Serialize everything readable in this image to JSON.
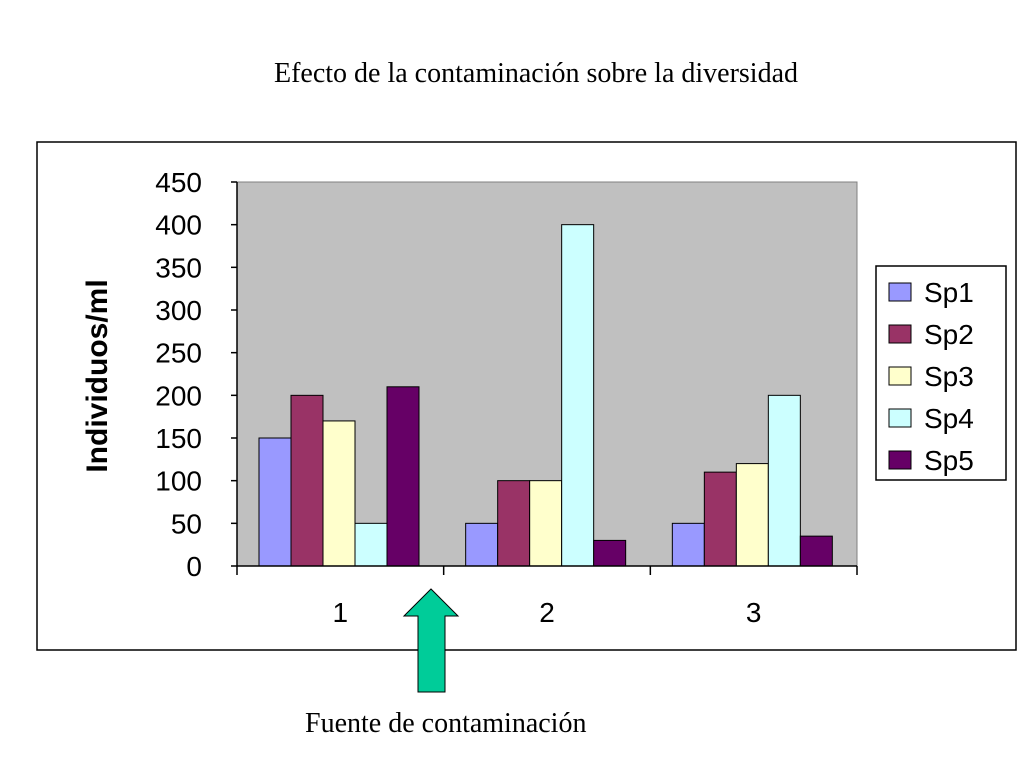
{
  "slide": {
    "title": "Efecto de la contaminación sobre la diversidad",
    "caption": "Fuente de contaminación",
    "arrow_color": "#00CC99"
  },
  "chart_data": {
    "type": "bar",
    "categories": [
      "1",
      "2",
      "3"
    ],
    "series": [
      {
        "name": "Sp1",
        "values": [
          150,
          50,
          50
        ],
        "color": "#9999FF"
      },
      {
        "name": "Sp2",
        "values": [
          200,
          100,
          110
        ],
        "color": "#993366"
      },
      {
        "name": "Sp3",
        "values": [
          170,
          100,
          120
        ],
        "color": "#FFFFCC"
      },
      {
        "name": "Sp4",
        "values": [
          50,
          400,
          200
        ],
        "color": "#CCFFFF"
      },
      {
        "name": "Sp5",
        "values": [
          210,
          30,
          35
        ],
        "color": "#660066"
      }
    ],
    "ylabel": "Individuos/ml",
    "ylim": [
      0,
      450
    ],
    "yticks": [
      0,
      50,
      100,
      150,
      200,
      250,
      300,
      350,
      400,
      450
    ],
    "plot_background": "#C0C0C0",
    "grid": false,
    "legend": "right"
  }
}
